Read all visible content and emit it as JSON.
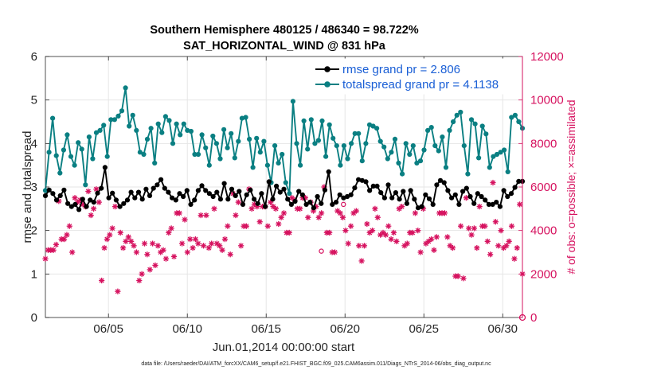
{
  "chart_data": {
    "type": "line",
    "title_line1": "Southern Hemisphere 480125 / 486340 = 98.722%",
    "title_line2": "SAT_HORIZONTAL_WIND @ 831 hPa",
    "xlabel": "Jun.01,2014 00:00:00 start",
    "ylabel_left": "rmse and totalspread",
    "ylabel_right": "# of obs: o=possible; ×=assimilated",
    "x_range": [
      1.0,
      31.25
    ],
    "x_ticks": [
      5,
      10,
      15,
      20,
      25,
      30
    ],
    "x_tick_labels": [
      "06/05",
      "06/10",
      "06/15",
      "06/20",
      "06/25",
      "06/30"
    ],
    "ylim_left": [
      0,
      6
    ],
    "y_ticks_left": [
      "0",
      "1",
      "2",
      "3",
      "4",
      "5",
      "6"
    ],
    "ylim_right": [
      0,
      12000
    ],
    "y_ticks_right": [
      "0",
      "2000",
      "4000",
      "6000",
      "8000",
      "10000",
      "12000"
    ],
    "colors": {
      "rmse": "#000000",
      "spread": "#0a7f82",
      "obs": "#d6125f",
      "legend_text": "#1a5fd6"
    },
    "legend": [
      {
        "name": "rmse grand pr = 2.806",
        "key": "rmse"
      },
      {
        "name": "totalspread grand pr = 4.1138",
        "key": "spread"
      }
    ],
    "series": [
      {
        "name": "rmse",
        "values": [
          2.8,
          2.93,
          2.85,
          2.7,
          2.8,
          2.93,
          2.62,
          2.55,
          2.6,
          2.48,
          2.72,
          2.55,
          2.7,
          2.65,
          2.86,
          2.97,
          3.45,
          2.75,
          2.86,
          2.7,
          2.55,
          2.62,
          2.7,
          2.88,
          2.75,
          2.88,
          2.72,
          2.95,
          2.8,
          2.97,
          3.05,
          3.17,
          2.97,
          2.88,
          2.75,
          2.7,
          2.85,
          2.78,
          2.92,
          2.6,
          2.7,
          2.92,
          3.03,
          2.92,
          2.85,
          2.78,
          2.88,
          2.72,
          3.08,
          2.72,
          2.95,
          2.8,
          2.9,
          2.6,
          2.82,
          2.93,
          2.72,
          2.62,
          2.85,
          2.55,
          3.12,
          2.72,
          3.02,
          2.88,
          2.95,
          2.72,
          2.6,
          2.67,
          2.9,
          2.82,
          2.6,
          2.65,
          2.52,
          2.78,
          2.62,
          2.93,
          3.35,
          2.6,
          2.65,
          2.82,
          2.75,
          2.78,
          2.82,
          2.98,
          3.17,
          3.15,
          3.12,
          2.92,
          3.02,
          3.02,
          2.87,
          2.75,
          3.05,
          2.75,
          2.87,
          2.72,
          2.9,
          2.62,
          2.92,
          2.72,
          2.52,
          2.55,
          2.82,
          2.73,
          2.6,
          3.05,
          3.15,
          3.1,
          2.92,
          2.75,
          2.82,
          2.6,
          2.9,
          2.97,
          2.78,
          2.62,
          2.85,
          2.78,
          2.7,
          2.6,
          2.6,
          2.65,
          2.55,
          2.92,
          2.78,
          2.85,
          2.99,
          3.13,
          3.13
        ]
      },
      {
        "name": "totalspread",
        "values": [
          2.92,
          3.8,
          4.58,
          3.72,
          3.32,
          3.85,
          4.2,
          3.7,
          3.5,
          4.02,
          3.87,
          3.05,
          4.15,
          3.65,
          4.25,
          4.3,
          4.42,
          3.7,
          4.55,
          4.55,
          4.63,
          4.75,
          5.28,
          4.4,
          4.65,
          4.3,
          3.8,
          3.75,
          4.1,
          4.35,
          3.55,
          4.45,
          4.25,
          4.62,
          4.53,
          4.0,
          4.45,
          4.2,
          4.45,
          4.3,
          4.28,
          3.75,
          3.75,
          4.2,
          3.9,
          3.5,
          4.17,
          4.0,
          3.65,
          4.32,
          3.9,
          4.23,
          3.67,
          4.05,
          4.58,
          4.6,
          4.1,
          3.45,
          4.12,
          3.8,
          4.05,
          3.5,
          3.1,
          3.95,
          3.55,
          3.75,
          3.1,
          2.85,
          4.97,
          4.0,
          3.5,
          4.52,
          3.87,
          4.55,
          4.0,
          4.07,
          4.52,
          3.7,
          4.43,
          4.12,
          3.95,
          3.5,
          3.95,
          3.65,
          4.0,
          4.23,
          4.23,
          3.6,
          4.0,
          4.43,
          4.4,
          4.35,
          4.05,
          3.92,
          3.65,
          3.8,
          4.1,
          3.55,
          3.3,
          4.0,
          3.75,
          3.95,
          3.55,
          3.6,
          3.85,
          4.3,
          4.37,
          3.95,
          3.83,
          4.15,
          3.45,
          4.3,
          4.5,
          4.65,
          4.72,
          3.95,
          3.3,
          4.55,
          4.45,
          3.67,
          4.4,
          4.22,
          3.45,
          3.7,
          3.75,
          3.8,
          3.85,
          3.35,
          4.6,
          4.65,
          4.5,
          4.35
        ]
      },
      {
        "name": "obs_assimilated",
        "values": [
          2700,
          3100,
          3100,
          3100,
          3350,
          5350,
          3600,
          3600,
          3800,
          4200,
          3000,
          5500,
          5300,
          5400,
          5200,
          5100,
          5800,
          4700,
          5000,
          5900,
          5300,
          1700,
          3200,
          3600,
          3800,
          4100,
          5100,
          1200,
          3900,
          3200,
          3500,
          3700,
          3500,
          3300,
          3000,
          1700,
          2000,
          3400,
          2900,
          2200,
          3400,
          2400,
          3300,
          3000,
          3100,
          2700,
          3900,
          4100,
          2800,
          4800,
          4800,
          3400,
          4500,
          3000,
          3600,
          3200,
          3600,
          3400,
          4700,
          3300,
          4700,
          3200,
          3400,
          5000,
          3400,
          3300,
          3100,
          3600,
          4200,
          2900,
          5700,
          4700,
          5300,
          3300,
          4200,
          4200,
          5900,
          5000,
          5200,
          5100,
          4400,
          5100,
          5100,
          4200,
          5300,
          5100,
          5000,
          4300,
          4600,
          4800,
          3900,
          3900,
          5500,
          5400,
          5000,
          5000,
          5500,
          5500,
          4600,
          5300,
          4900,
          5100,
          4600,
          4800,
          6000,
          3900,
          3900,
          3000,
          3000,
          4900,
          4800,
          4600,
          4000,
          3400,
          4200,
          4800,
          4900,
          3300,
          2600,
          3300,
          4300,
          3900,
          4000,
          5000,
          4600,
          3800,
          3900,
          3800,
          4200,
          3600,
          3900,
          3500,
          5000,
          5100,
          3300,
          3400,
          3900,
          3900,
          4800,
          4000,
          3000,
          5000,
          3400,
          3500,
          3600,
          3100,
          3700,
          4800,
          4800,
          4800,
          3700,
          3300,
          3200,
          1900,
          1900,
          4200,
          1800,
          5500,
          4100,
          3800,
          4100,
          3200,
          5100,
          4200,
          4200,
          3500,
          2900,
          6200,
          4400,
          3300,
          4000,
          3200,
          3300,
          3500,
          4200,
          2700,
          3200,
          5200,
          2000
        ]
      },
      {
        "name": "obs_possible",
        "points": [
          [
            18.5,
            3050
          ],
          [
            19.9,
            5200
          ]
        ]
      }
    ],
    "annotation": "data file: /Users/raeder/DAI/ATM_forcXX/CAM6_setup/f.e21.FHIST_BGC.f09_025.CAM6assim.011/Diags_NTrS_2014-06/obs_diag_output.nc"
  }
}
